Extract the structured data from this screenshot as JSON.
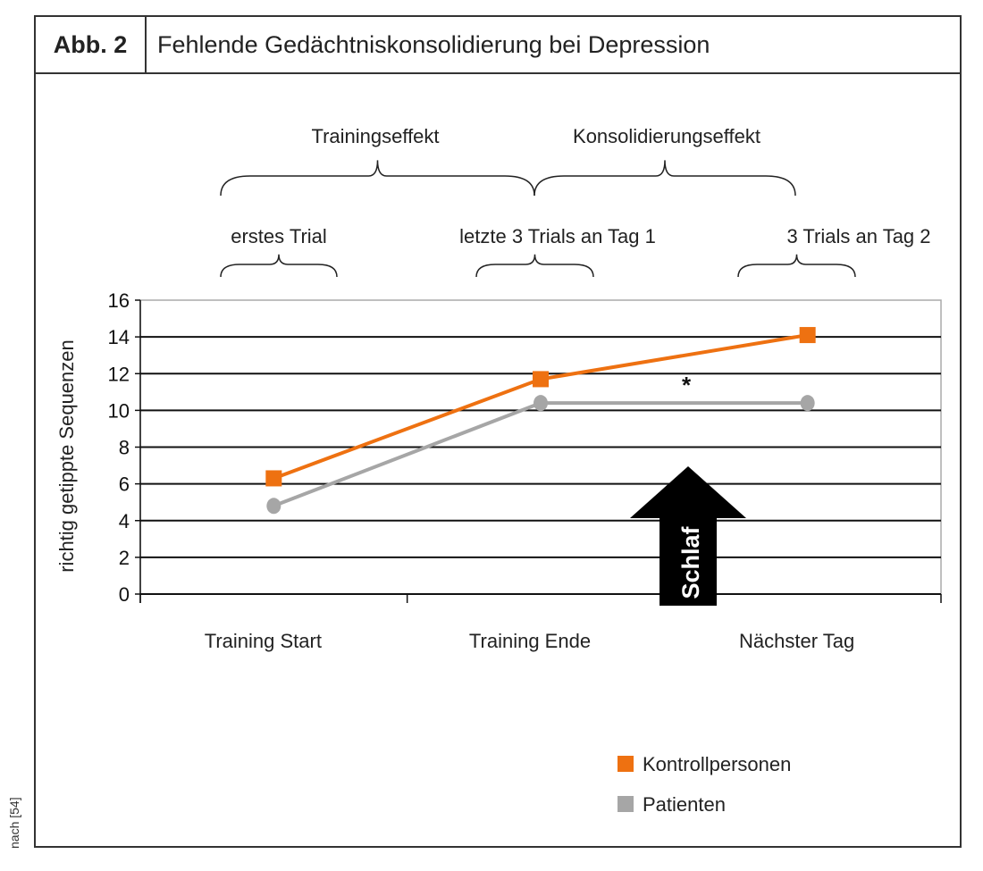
{
  "header": {
    "label": "Abb. 2",
    "title": "Fehlende Gedächtniskonsolidierung bei Depression"
  },
  "source": "nach [54]",
  "chart_data": {
    "type": "line",
    "title": "Fehlende Gedächtniskonsolidierung bei Depression",
    "ylabel": "richtig getippte Sequenzen",
    "xlabel": "",
    "ylim": [
      0,
      16
    ],
    "yticks": [
      0,
      2,
      4,
      6,
      8,
      10,
      12,
      14,
      16
    ],
    "categories": [
      "Training Start",
      "Training Ende",
      "Nächster Tag"
    ],
    "series": [
      {
        "name": "Kontrollpersonen",
        "color": "#ee7111",
        "marker": "square",
        "values": [
          6.3,
          11.7,
          14.1
        ]
      },
      {
        "name": "Patienten",
        "color": "#a6a6a6",
        "marker": "circle",
        "values": [
          4.8,
          10.4,
          10.4
        ]
      }
    ],
    "legend": "bottom-right",
    "grid": true,
    "annotations": {
      "significance": "*",
      "arrow_label": "Schlaf",
      "effects": [
        "Trainingseffekt",
        "Konsolidierungseffekt"
      ],
      "phases": [
        "erstes Trial",
        "letzte 3 Trials an Tag 1",
        "3 Trials an Tag 2"
      ]
    }
  }
}
